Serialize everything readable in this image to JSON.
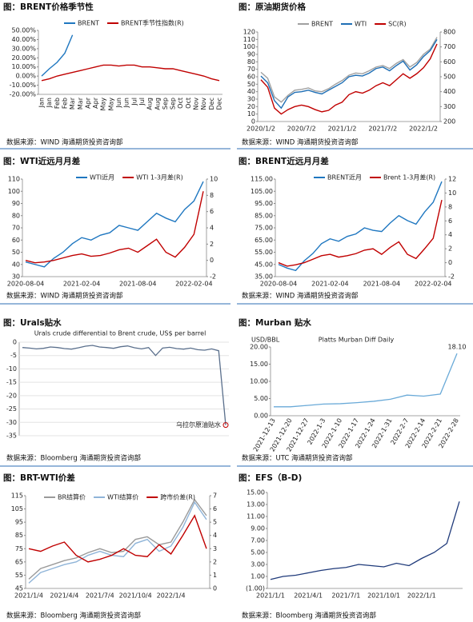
{
  "chart_data": [
    {
      "type": "line",
      "title": "图：BRENT价格季节性",
      "source": "数据来源：WIND    海通期货投资咨询部",
      "categories": [
        "Jan",
        "Jan",
        "Feb",
        "Feb",
        "Mar",
        "Mar",
        "Apr",
        "Apr",
        "May",
        "May",
        "Jun",
        "Jun",
        "Jul",
        "Jul",
        "Aug",
        "Aug",
        "Sep",
        "Sep",
        "Oct",
        "Oct",
        "Nov",
        "Nov",
        "Dec",
        "Dec"
      ],
      "series": [
        {
          "name": "BRENT",
          "color": "#1f77c0",
          "values": [
            0,
            8,
            15,
            25,
            45,
            null,
            null,
            null,
            null,
            null,
            null,
            null,
            null,
            null,
            null,
            null,
            null,
            null,
            null,
            null,
            null,
            null,
            null,
            null
          ]
        },
        {
          "name": "BRENT季节性指数(R)",
          "color": "#c00000",
          "values": [
            -5,
            -3,
            0,
            2,
            4,
            6,
            8,
            10,
            12,
            12,
            11,
            12,
            12,
            10,
            10,
            9,
            8,
            8,
            6,
            4,
            2,
            0,
            -3,
            -5
          ]
        }
      ],
      "ylim": [
        -20,
        50
      ],
      "yticks": [
        {
          "value": -20,
          "label": "-20.00%"
        },
        {
          "value": -10,
          "label": "-10.00%"
        },
        {
          "value": 0,
          "label": "0.00%"
        },
        {
          "value": 10,
          "label": "10.00%"
        },
        {
          "value": 20,
          "label": "20.00%"
        },
        {
          "value": 30,
          "label": "30.00%"
        },
        {
          "value": 40,
          "label": "40.00%"
        },
        {
          "value": 50,
          "label": "50.00%"
        }
      ]
    },
    {
      "type": "line",
      "title": "图：原油期货价格",
      "source": "数据来源：WIND    海通期货投资咨询部",
      "categories": [
        "2020/1/2",
        null,
        null,
        null,
        null,
        null,
        "2020/7/2",
        null,
        null,
        null,
        null,
        null,
        "2021/1/2",
        null,
        null,
        null,
        null,
        null,
        "2021/7/2",
        null,
        null,
        null,
        null,
        null,
        "2022/1/2",
        null,
        null
      ],
      "series": [
        {
          "name": "BRENT",
          "color": "#a0a0a0",
          "values": [
            66,
            58,
            33,
            26,
            35,
            42,
            43,
            45,
            41,
            40,
            44,
            50,
            55,
            62,
            65,
            64,
            68,
            73,
            75,
            71,
            78,
            83,
            73,
            79,
            90,
            97,
            113
          ]
        },
        {
          "name": "WTI",
          "color": "#1f6fb5",
          "values": [
            61,
            52,
            28,
            18,
            33,
            39,
            40,
            42,
            39,
            37,
            42,
            47,
            52,
            60,
            62,
            61,
            65,
            71,
            73,
            68,
            75,
            81,
            69,
            76,
            87,
            95,
            110
          ]
        },
        {
          "name": "SC(R)",
          "color": "#c00000",
          "axis": "y2",
          "values": [
            480,
            430,
            290,
            250,
            280,
            300,
            310,
            300,
            280,
            265,
            275,
            310,
            330,
            380,
            400,
            390,
            410,
            440,
            460,
            440,
            480,
            520,
            490,
            520,
            560,
            620,
            720
          ]
        }
      ],
      "ylim": [
        0,
        120
      ],
      "yticks": [
        0,
        10,
        20,
        30,
        40,
        50,
        60,
        70,
        80,
        90,
        100,
        110,
        120
      ],
      "y2lim": [
        200,
        800
      ],
      "y2ticks": [
        200,
        300,
        400,
        500,
        600,
        700,
        800
      ]
    },
    {
      "type": "line",
      "title": "图：WTI近远月月差",
      "source": "数据来源：WIND    海通期货投资咨询部",
      "categories": [
        "2020-08-04",
        null,
        null,
        null,
        null,
        null,
        "2021-02-04",
        null,
        null,
        null,
        null,
        null,
        "2021-08-04",
        null,
        null,
        null,
        null,
        null,
        "2022-02-04",
        null
      ],
      "series": [
        {
          "name": "WTI近月",
          "color": "#1f77c0",
          "values": [
            42,
            40,
            38,
            45,
            50,
            57,
            62,
            60,
            64,
            66,
            72,
            70,
            68,
            75,
            82,
            78,
            75,
            85,
            92,
            108
          ]
        },
        {
          "name": "WTI 1-3月差(R)",
          "color": "#c00000",
          "axis": "y2",
          "values": [
            0,
            -0.3,
            -0.2,
            0,
            0.3,
            0.6,
            0.8,
            0.5,
            0.6,
            0.9,
            1.3,
            1.5,
            1.0,
            1.8,
            2.6,
            1.0,
            0.4,
            1.6,
            3.2,
            8.5
          ]
        }
      ],
      "ylim": [
        30,
        110
      ],
      "yticks": [
        30,
        40,
        50,
        60,
        70,
        80,
        90,
        100,
        110
      ],
      "y2lim": [
        -2,
        10
      ],
      "y2ticks": [
        -2,
        0,
        2,
        4,
        6,
        8,
        10
      ]
    },
    {
      "type": "line",
      "title": "图：BRENT近远月月差",
      "source": "数据来源：WIND    海通期货投资咨询部",
      "categories": [
        "2020-08-04",
        null,
        null,
        null,
        null,
        null,
        "2021-02-04",
        null,
        null,
        null,
        null,
        null,
        "2021-08-04",
        null,
        null,
        null,
        null,
        null,
        "2022-02-04",
        null
      ],
      "series": [
        {
          "name": "BRENT近月",
          "color": "#1f77c0",
          "values": [
            45,
            42,
            40,
            48,
            54,
            62,
            66,
            64,
            68,
            70,
            75,
            73,
            72,
            79,
            85,
            81,
            78,
            88,
            96,
            113
          ]
        },
        {
          "name": "Brent 1-3月差(R)",
          "color": "#c00000",
          "axis": "y2",
          "values": [
            0,
            -0.5,
            -0.3,
            0,
            0.5,
            1,
            1.2,
            0.8,
            1,
            1.3,
            1.8,
            2,
            1.2,
            2.2,
            3,
            1.2,
            0.6,
            2,
            3.5,
            9
          ]
        }
      ],
      "ylim": [
        35,
        115
      ],
      "yticks": [
        {
          "value": 35,
          "label": "35.00"
        },
        {
          "value": 45,
          "label": "45.00"
        },
        {
          "value": 55,
          "label": "55.00"
        },
        {
          "value": 65,
          "label": "65.00"
        },
        {
          "value": 75,
          "label": "75.00"
        },
        {
          "value": 85,
          "label": "85.00"
        },
        {
          "value": 95,
          "label": "95.00"
        },
        {
          "value": 105,
          "label": "105.00"
        },
        {
          "value": 115,
          "label": "115.00"
        }
      ],
      "y2lim": [
        -2,
        12
      ],
      "y2ticks": [
        -2,
        0,
        2,
        4,
        6,
        8,
        10,
        12
      ]
    },
    {
      "type": "line",
      "title": "图：Urals贴水",
      "subtitle": "Urals crude differential to Brent crude, US$ per barrel",
      "source": "数据来源：Bloomberg    海通期货投资咨询部",
      "annotation": "乌拉尔原油贴水",
      "color": "#5a6f8c",
      "grid": true,
      "values": [
        -2,
        -2.2,
        -2.5,
        -2.3,
        -1.8,
        -2,
        -2.4,
        -2.6,
        -2.1,
        -1.5,
        -1.2,
        -1.8,
        -2,
        -2.3,
        -1.7,
        -1.4,
        -2.1,
        -2.5,
        -2,
        -5,
        -2.2,
        -1.9,
        -2.4,
        -2.6,
        -2.2,
        -2.8,
        -3,
        -2.5,
        -3.2,
        -31
      ],
      "ylim": [
        -35,
        0
      ],
      "yticks": [
        0,
        -5,
        -10,
        -15,
        -20,
        -25,
        -30,
        -35
      ]
    },
    {
      "type": "line",
      "title": "图：Murban 贴水",
      "subtitle": "Platts Murban Diff Daily",
      "y_label": "USD/BBL",
      "source": "数据来源：UTC    海通期货投资咨询部",
      "color": "#6aaad8",
      "categories": [
        "2021-12-13",
        "2021-12-20",
        "2021-12-27",
        "2022-1-3",
        "2022-1-10",
        "2022-1-17",
        "2022-1-24",
        "2022-1-31",
        "2022-2-7",
        "2022-2-14",
        "2022-2-21",
        "2022-2-28"
      ],
      "values": [
        2.6,
        2.6,
        3.0,
        3.4,
        3.5,
        3.8,
        4.2,
        4.8,
        6.0,
        5.7,
        6.3,
        18.1
      ],
      "value_labels": [
        null,
        null,
        null,
        null,
        null,
        null,
        null,
        null,
        null,
        null,
        null,
        "18.10"
      ],
      "ylim": [
        0,
        20
      ],
      "yticks": [
        {
          "value": 0,
          "label": "0.00"
        },
        {
          "value": 5,
          "label": "5.00"
        },
        {
          "value": 10,
          "label": "10.00"
        },
        {
          "value": 15,
          "label": "15.00"
        },
        {
          "value": 20,
          "label": "20.00"
        }
      ]
    },
    {
      "type": "line",
      "title": "图：BRT-WTI价差",
      "source": "数据来源：Bloomberg    海通期货投资咨询部",
      "categories": [
        "2021/1/4",
        null,
        null,
        "2021/4/4",
        null,
        null,
        "2021/7/4",
        null,
        null,
        "2021/10/4",
        null,
        null,
        "2022/1/4",
        null,
        null,
        null
      ],
      "series": [
        {
          "name": "BR结算价",
          "color": "#9a9a9a",
          "values": [
            52,
            60,
            63,
            66,
            68,
            72,
            75,
            72,
            73,
            82,
            84,
            78,
            80,
            95,
            112,
            100
          ]
        },
        {
          "name": "WTI结算价",
          "color": "#8fb4d8",
          "values": [
            49,
            57,
            60,
            63,
            65,
            70,
            73,
            70,
            69,
            79,
            82,
            73,
            77,
            91,
            110,
            97
          ]
        },
        {
          "name": "跨市价差(R)",
          "color": "#c00000",
          "axis": "y2",
          "values": [
            3,
            2.8,
            3.2,
            3.5,
            2.5,
            2,
            2.2,
            2.5,
            3,
            2.5,
            2.4,
            3.3,
            2.6,
            4,
            5.5,
            3
          ]
        }
      ],
      "ylim": [
        45,
        115
      ],
      "yticks": [
        45,
        55,
        65,
        75,
        85,
        95,
        105,
        115
      ],
      "y2lim": [
        0,
        7
      ],
      "y2ticks": [
        0,
        1,
        2,
        3,
        4,
        5,
        6,
        7
      ]
    },
    {
      "type": "line",
      "title": "图：EFS（B-D)",
      "source": "数据来源：Bloomberg    海通期货投资咨询部",
      "color": "#1f3a7a",
      "categories": [
        "2021/1/1",
        null,
        null,
        "2021/4/1",
        null,
        null,
        "2021/7/1",
        null,
        null,
        "2021/10/1",
        null,
        null,
        "2022/1/1",
        null,
        null,
        null
      ],
      "values": [
        0.5,
        1,
        1.2,
        1.6,
        2,
        2.3,
        2.5,
        3,
        2.8,
        2.6,
        3.2,
        2.8,
        4,
        5,
        6.5,
        13.5
      ],
      "ylim": [
        -1,
        15
      ],
      "yticks": [
        {
          "value": -1,
          "label": "(1.00)"
        },
        {
          "value": 1,
          "label": "1.00"
        },
        {
          "value": 3,
          "label": "3.00"
        },
        {
          "value": 5,
          "label": "5.00"
        },
        {
          "value": 7,
          "label": "7.00"
        },
        {
          "value": 9,
          "label": "9.00"
        },
        {
          "value": 11,
          "label": "11.00"
        },
        {
          "value": 13,
          "label": "13.00"
        },
        {
          "value": 15,
          "label": "15.00"
        }
      ]
    }
  ]
}
